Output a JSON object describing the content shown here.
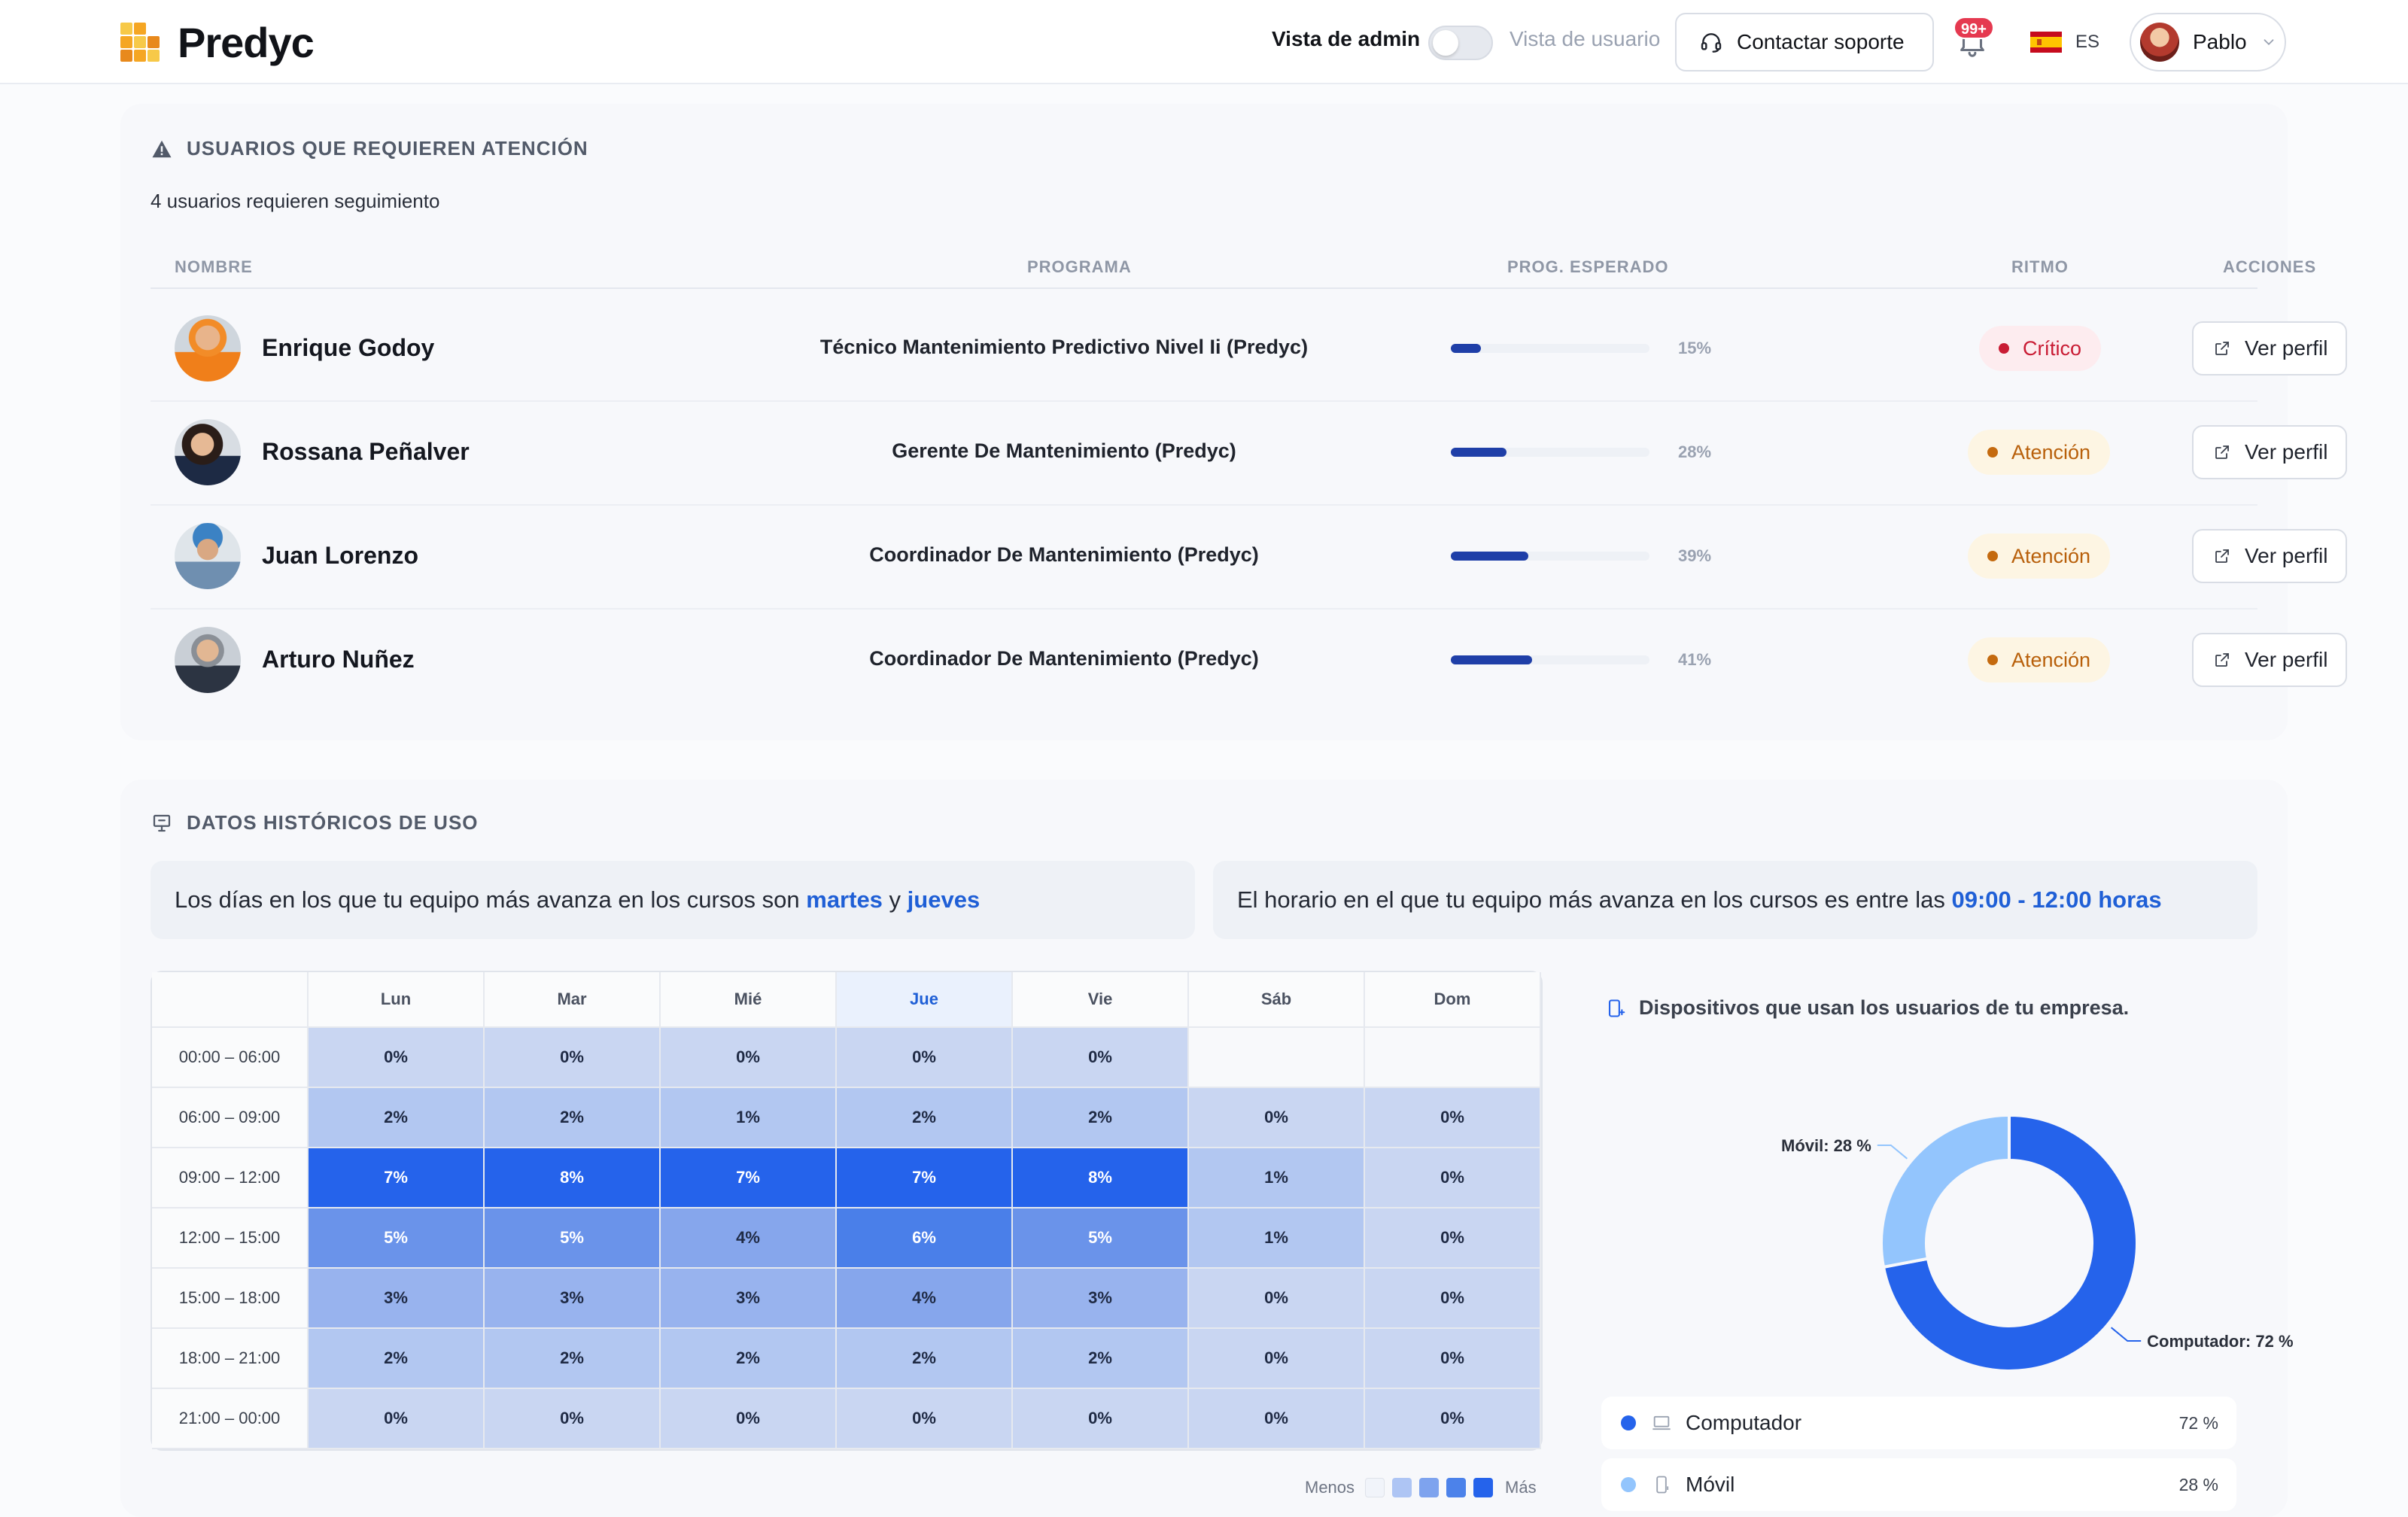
{
  "header": {
    "logo_text": "Predyc",
    "admin_view_label": "Vista de admin",
    "user_view_label": "Vista de usuario",
    "support_button": "Contactar soporte",
    "notifications_badge": "99+",
    "language": "ES",
    "user_name": "Pablo",
    "logo_colors": [
      "#f5a623",
      "#f7c948",
      "#e8891c"
    ]
  },
  "attention": {
    "title": "USUARIOS QUE REQUIEREN ATENCIÓN",
    "subtitle": "4 usuarios requieren seguimiento",
    "columns": {
      "name": "NOMBRE",
      "program": "PROGRAMA",
      "expected": "PROG. ESPERADO",
      "pace": "RITMO",
      "actions": "ACCIONES"
    },
    "rows": [
      {
        "name": "Enrique Godoy",
        "program": "Técnico Mantenimiento Predictivo Nivel Ii (Predyc)",
        "progress_label": "15%",
        "progress": 15,
        "pace": "Crítico",
        "pace_level": "critical",
        "action": "Ver perfil"
      },
      {
        "name": "Rossana Peñalver",
        "program": "Gerente De Mantenimiento (Predyc)",
        "progress_label": "28%",
        "progress": 28,
        "pace": "Atención",
        "pace_level": "warning",
        "action": "Ver perfil"
      },
      {
        "name": "Juan Lorenzo",
        "program": "Coordinador De Mantenimiento (Predyc)",
        "progress_label": "39%",
        "progress": 39,
        "pace": "Atención",
        "pace_level": "warning",
        "action": "Ver perfil"
      },
      {
        "name": "Arturo Nuñez",
        "program": "Coordinador De Mantenimiento (Predyc)",
        "progress_label": "41%",
        "progress": 41,
        "pace": "Atención",
        "pace_level": "warning",
        "action": "Ver perfil"
      }
    ]
  },
  "history": {
    "title": "DATOS HISTÓRICOS DE USO",
    "insight_days": {
      "prefix": "Los días en los que tu equipo más avanza en los cursos son ",
      "day1": "martes",
      "joiner": " y ",
      "day2": "jueves"
    },
    "insight_hours": {
      "prefix": "El horario en el que tu equipo más avanza en los cursos es entre las ",
      "range": "09:00 - 12:00 horas"
    },
    "heatmap": {
      "days": [
        "Lun",
        "Mar",
        "Mié",
        "Jue",
        "Vie",
        "Sáb",
        "Dom"
      ],
      "highlight_day": "Jue",
      "slots": [
        "00:00 – 06:00",
        "06:00 – 09:00",
        "09:00 – 12:00",
        "12:00 – 15:00",
        "15:00 – 18:00",
        "18:00 – 21:00",
        "21:00 – 00:00"
      ],
      "values": [
        [
          "0%",
          "0%",
          "0%",
          "0%",
          "0%",
          "",
          ""
        ],
        [
          "2%",
          "2%",
          "1%",
          "2%",
          "2%",
          "0%",
          "0%"
        ],
        [
          "7%",
          "8%",
          "7%",
          "7%",
          "8%",
          "1%",
          "0%"
        ],
        [
          "5%",
          "5%",
          "4%",
          "6%",
          "5%",
          "1%",
          "0%"
        ],
        [
          "3%",
          "3%",
          "3%",
          "4%",
          "3%",
          "0%",
          "0%"
        ],
        [
          "2%",
          "2%",
          "2%",
          "2%",
          "2%",
          "0%",
          "0%"
        ],
        [
          "0%",
          "0%",
          "0%",
          "0%",
          "0%",
          "0%",
          "0%"
        ]
      ],
      "legend_less": "Menos",
      "legend_more": "Más"
    },
    "devices": {
      "title": "Dispositivos que usan los usuarios de tu empresa.",
      "items": [
        {
          "name": "Computador",
          "value": 72,
          "label": "72 %",
          "chart_label": "Computador: 72 %",
          "color": "#2563eb"
        },
        {
          "name": "Móvil",
          "value": 28,
          "label": "28 %",
          "chart_label": "Móvil: 28 %",
          "color": "#93c5fd"
        }
      ]
    }
  },
  "chart_data": [
    {
      "type": "heatmap",
      "x": [
        "Lun",
        "Mar",
        "Mié",
        "Jue",
        "Vie",
        "Sáb",
        "Dom"
      ],
      "y": [
        "00:00 – 06:00",
        "06:00 – 09:00",
        "09:00 – 12:00",
        "12:00 – 15:00",
        "15:00 – 18:00",
        "18:00 – 21:00",
        "21:00 – 00:00"
      ],
      "values": [
        [
          0,
          0,
          0,
          0,
          0,
          null,
          null
        ],
        [
          2,
          2,
          1,
          2,
          2,
          0,
          0
        ],
        [
          7,
          8,
          7,
          7,
          8,
          1,
          0
        ],
        [
          5,
          5,
          4,
          6,
          5,
          1,
          0
        ],
        [
          3,
          3,
          3,
          4,
          3,
          0,
          0
        ],
        [
          2,
          2,
          2,
          2,
          2,
          0,
          0
        ],
        [
          0,
          0,
          0,
          0,
          0,
          0,
          0
        ]
      ],
      "unit": "%"
    },
    {
      "type": "pie",
      "title": "Dispositivos que usan los usuarios de tu empresa.",
      "categories": [
        "Computador",
        "Móvil"
      ],
      "values": [
        72,
        28
      ],
      "unit": "%"
    }
  ]
}
